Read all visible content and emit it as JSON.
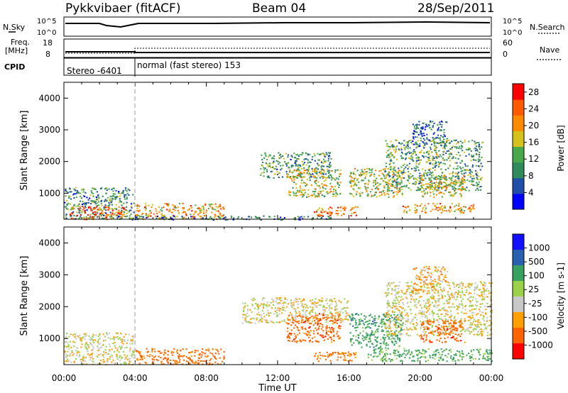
{
  "header": {
    "title": "Pykkvibaer (fitACF)",
    "beam": "Beam 04",
    "date": "28/Sep/2011"
  },
  "sky_panel": {
    "left_label": "N.Sky",
    "left_ticks": [
      "10^5",
      "10^0"
    ],
    "right_ticks": [
      "10^5",
      "10^0"
    ],
    "right_label": "N.Search"
  },
  "freq_panel": {
    "left_label_line1": "Freq.",
    "left_label_line2": "[MHz]",
    "left_ticks": [
      "18",
      "8"
    ],
    "right_ticks": [
      "60",
      "0"
    ],
    "right_label": "Nave"
  },
  "cpid_panel": {
    "label": "CPID",
    "modes": [
      {
        "name": "Stereo -6401",
        "start_hour": 0
      },
      {
        "name": "normal (fast stereo) 153",
        "start_hour": 4
      }
    ]
  },
  "colors": {
    "power_scale": [
      "#0000ff",
      "#1f4fa8",
      "#2f8a5c",
      "#4aa84a",
      "#d6c21a",
      "#ff8a00",
      "#ff5a00",
      "#ff0000"
    ],
    "velocity_scale": [
      "#ff0000",
      "#ff6400",
      "#ffa000",
      "#c8c8c8",
      "#9ad24a",
      "#3aa060",
      "#2a60b0",
      "#1010ff"
    ]
  },
  "chart_data": [
    {
      "type": "heatmap",
      "title": "Power",
      "ylabel": "Slant Range [km]",
      "xlabel": "Time UT",
      "x_ticks": [
        "00:00",
        "04:00",
        "08:00",
        "12:00",
        "16:00",
        "20:00",
        "00:00"
      ],
      "x_range_hours": [
        0,
        24
      ],
      "y_ticks": [
        1000,
        2000,
        3000,
        4000
      ],
      "ylim": [
        180,
        4500
      ],
      "colorbar": {
        "label": "Power [dB]",
        "ticks": [
          4,
          8,
          12,
          16,
          20,
          24,
          28
        ],
        "range": [
          0,
          30
        ]
      },
      "scatter_regions": [
        {
          "t": [
            0.0,
            3.9
          ],
          "r": [
            200,
            1200
          ],
          "value": 10
        },
        {
          "t": [
            0.3,
            3.5
          ],
          "r": [
            180,
            600
          ],
          "value": 24
        },
        {
          "t": [
            4.0,
            9.0
          ],
          "r": [
            200,
            700
          ],
          "value": 20
        },
        {
          "t": [
            3.0,
            15.0
          ],
          "r": [
            180,
            300
          ],
          "value": 8
        },
        {
          "t": [
            11.0,
            15.0
          ],
          "r": [
            1500,
            2300
          ],
          "value": 10
        },
        {
          "t": [
            12.5,
            15.5
          ],
          "r": [
            900,
            1800
          ],
          "value": 16
        },
        {
          "t": [
            14.0,
            16.5
          ],
          "r": [
            300,
            600
          ],
          "value": 22
        },
        {
          "t": [
            16.0,
            19.0
          ],
          "r": [
            900,
            1800
          ],
          "value": 16
        },
        {
          "t": [
            18.0,
            23.5
          ],
          "r": [
            1100,
            2700
          ],
          "value": 12
        },
        {
          "t": [
            19.5,
            21.5
          ],
          "r": [
            2500,
            3300
          ],
          "value": 8
        },
        {
          "t": [
            20.0,
            22.5
          ],
          "r": [
            900,
            1600
          ],
          "value": 18
        },
        {
          "t": [
            19.0,
            23.0
          ],
          "r": [
            400,
            700
          ],
          "value": 20
        }
      ]
    },
    {
      "type": "heatmap",
      "title": "Velocity",
      "ylabel": "Slant Range [km]",
      "xlabel": "Time UT",
      "x_ticks": [
        "00:00",
        "04:00",
        "08:00",
        "12:00",
        "16:00",
        "20:00",
        "00:00"
      ],
      "x_range_hours": [
        0,
        24
      ],
      "y_ticks": [
        1000,
        2000,
        3000,
        4000
      ],
      "ylim": [
        180,
        4500
      ],
      "colorbar": {
        "label": "Velocity [m s-1]",
        "ticks": [
          "1000",
          "500",
          "100",
          "25",
          "-25",
          "-100",
          "-500",
          "-1000"
        ]
      },
      "scatter_regions": [
        {
          "t": [
            0.0,
            3.9
          ],
          "r": [
            200,
            1200
          ],
          "value": 0
        },
        {
          "t": [
            4.0,
            9.0
          ],
          "r": [
            200,
            700
          ],
          "value": -200
        },
        {
          "t": [
            10.0,
            16.0
          ],
          "r": [
            1500,
            2300
          ],
          "value": 0
        },
        {
          "t": [
            12.5,
            15.5
          ],
          "r": [
            900,
            1800
          ],
          "value": -300
        },
        {
          "t": [
            14.0,
            16.5
          ],
          "r": [
            300,
            600
          ],
          "value": -150
        },
        {
          "t": [
            16.0,
            19.0
          ],
          "r": [
            700,
            1800
          ],
          "value": 300
        },
        {
          "t": [
            18.0,
            24.0
          ],
          "r": [
            1100,
            2800
          ],
          "value": 0
        },
        {
          "t": [
            19.5,
            21.5
          ],
          "r": [
            2500,
            3300
          ],
          "value": -50
        },
        {
          "t": [
            20.0,
            22.5
          ],
          "r": [
            900,
            1600
          ],
          "value": -300
        },
        {
          "t": [
            17.0,
            24.0
          ],
          "r": [
            300,
            700
          ],
          "value": 150
        }
      ]
    }
  ]
}
